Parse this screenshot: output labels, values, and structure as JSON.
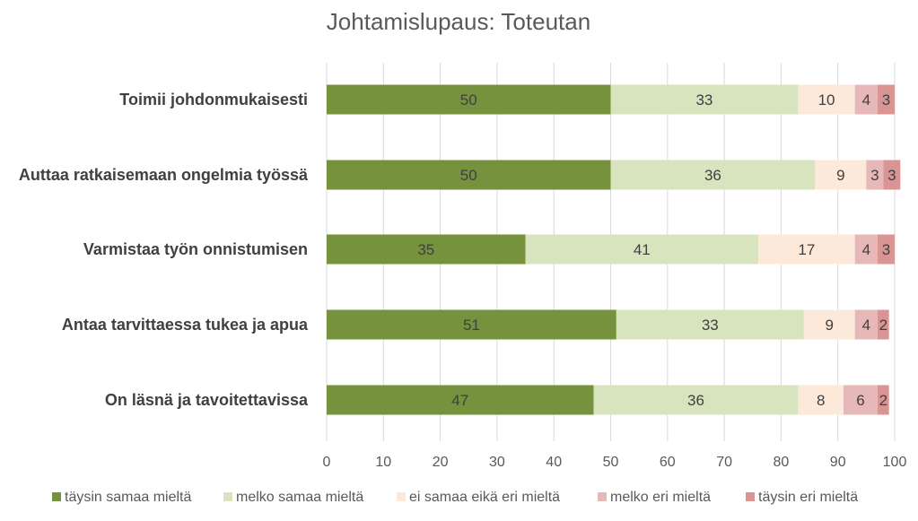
{
  "chart_data": {
    "type": "bar",
    "orientation": "horizontal",
    "stacked": true,
    "title": "Johtamislupaus: Toteutan",
    "xlabel": "",
    "ylabel": "",
    "xlim": [
      0,
      100
    ],
    "x_ticks": [
      0,
      10,
      20,
      30,
      40,
      50,
      60,
      70,
      80,
      90,
      100
    ],
    "grid": true,
    "legend_position": "bottom",
    "categories": [
      "Toimii  johdonmukaisesti",
      "Auttaa ratkaisemaan ongelmia työssä",
      "Varmistaa työn onnistumisen",
      "Antaa tarvittaessa tukea ja apua",
      "On läsnä ja tavoitettavissa"
    ],
    "series": [
      {
        "name": "täysin samaa mieltä",
        "color": "#76923c",
        "values": [
          50,
          50,
          35,
          51,
          47
        ]
      },
      {
        "name": "melko samaa mieltä",
        "color": "#d7e4bd",
        "values": [
          33,
          36,
          41,
          33,
          36
        ]
      },
      {
        "name": "ei samaa eikä eri  mieltä",
        "color": "#fde9d9",
        "values": [
          10,
          9,
          17,
          9,
          8
        ]
      },
      {
        "name": "melko eri  mieltä",
        "color": "#e6b9b8",
        "values": [
          4,
          3,
          4,
          4,
          6
        ]
      },
      {
        "name": "täysin eri mieltä",
        "color": "#d99594",
        "values": [
          3,
          3,
          3,
          2,
          2
        ]
      }
    ]
  }
}
